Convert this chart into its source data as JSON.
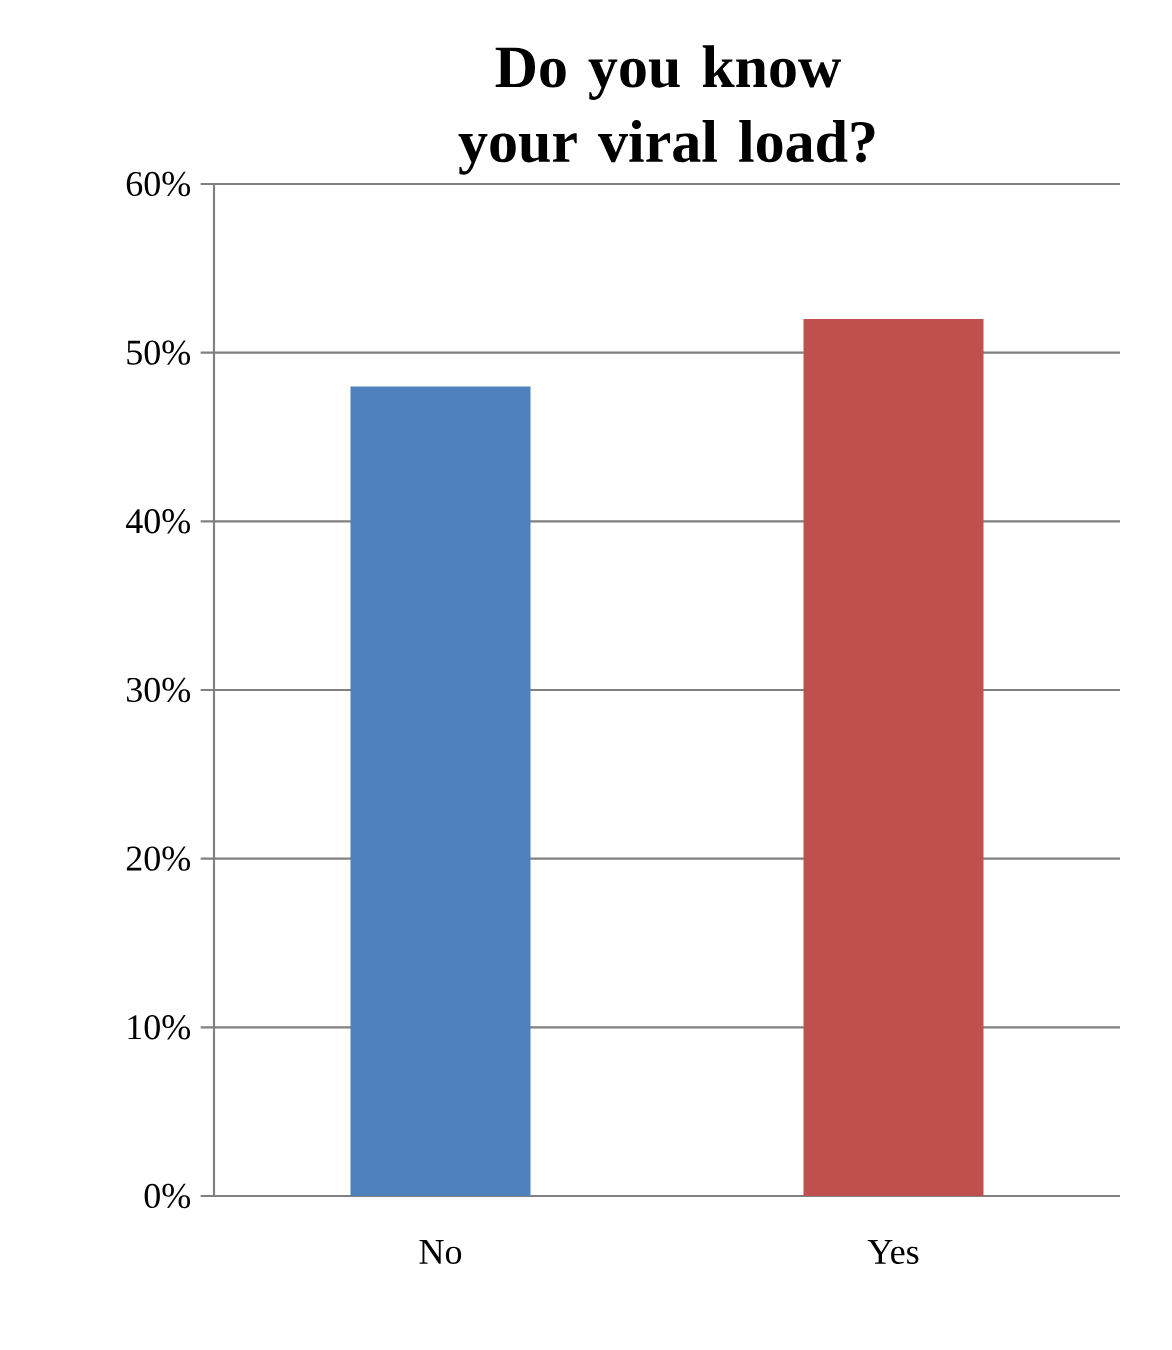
{
  "chart_data": {
    "type": "bar",
    "title": "Do you know your viral load?",
    "categories": [
      "No",
      "Yes"
    ],
    "values": [
      48,
      52
    ],
    "colors": [
      "#4f81bd",
      "#c0504d"
    ],
    "ylim": [
      0,
      60
    ],
    "yticks": [
      {
        "value": 0,
        "label": "0%"
      },
      {
        "value": 10,
        "label": "10%"
      },
      {
        "value": 20,
        "label": "20%"
      },
      {
        "value": 30,
        "label": "30%"
      },
      {
        "value": 40,
        "label": "40%"
      },
      {
        "value": 50,
        "label": "50%"
      },
      {
        "value": 60,
        "label": "60%"
      }
    ],
    "grid": "y"
  }
}
